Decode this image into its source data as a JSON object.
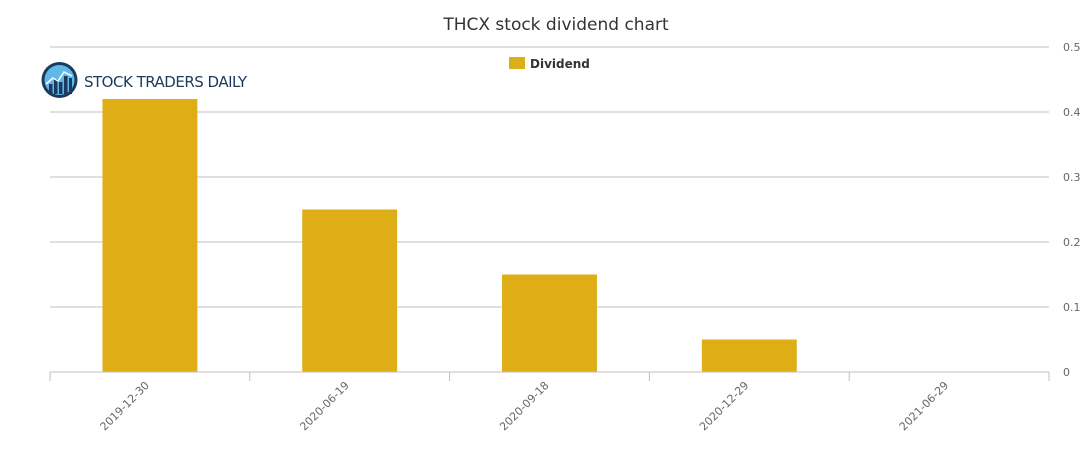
{
  "logo": {
    "text": "STOCK TRADERS DAILY"
  },
  "chart_data": {
    "type": "bar",
    "title": "THCX stock dividend chart",
    "xlabel": "",
    "ylabel": "",
    "categories": [
      "2019-12-30",
      "2020-06-19",
      "2020-09-18",
      "2020-12-29",
      "2021-06-29"
    ],
    "series": [
      {
        "name": "Dividend",
        "values": [
          0.42,
          0.25,
          0.15,
          0.05,
          0
        ]
      }
    ],
    "ylim": [
      0,
      0.5
    ],
    "yticks": [
      "0",
      "0.1",
      "0.2",
      "0.3",
      "0.4",
      "0.5"
    ],
    "y_axis_side": "right",
    "grid": true,
    "legend_position": "top-center",
    "colors": {
      "bar": "#dfae17",
      "grid": "#c0c0c0",
      "axis": "#c0c0c0",
      "text": "#333333"
    }
  }
}
